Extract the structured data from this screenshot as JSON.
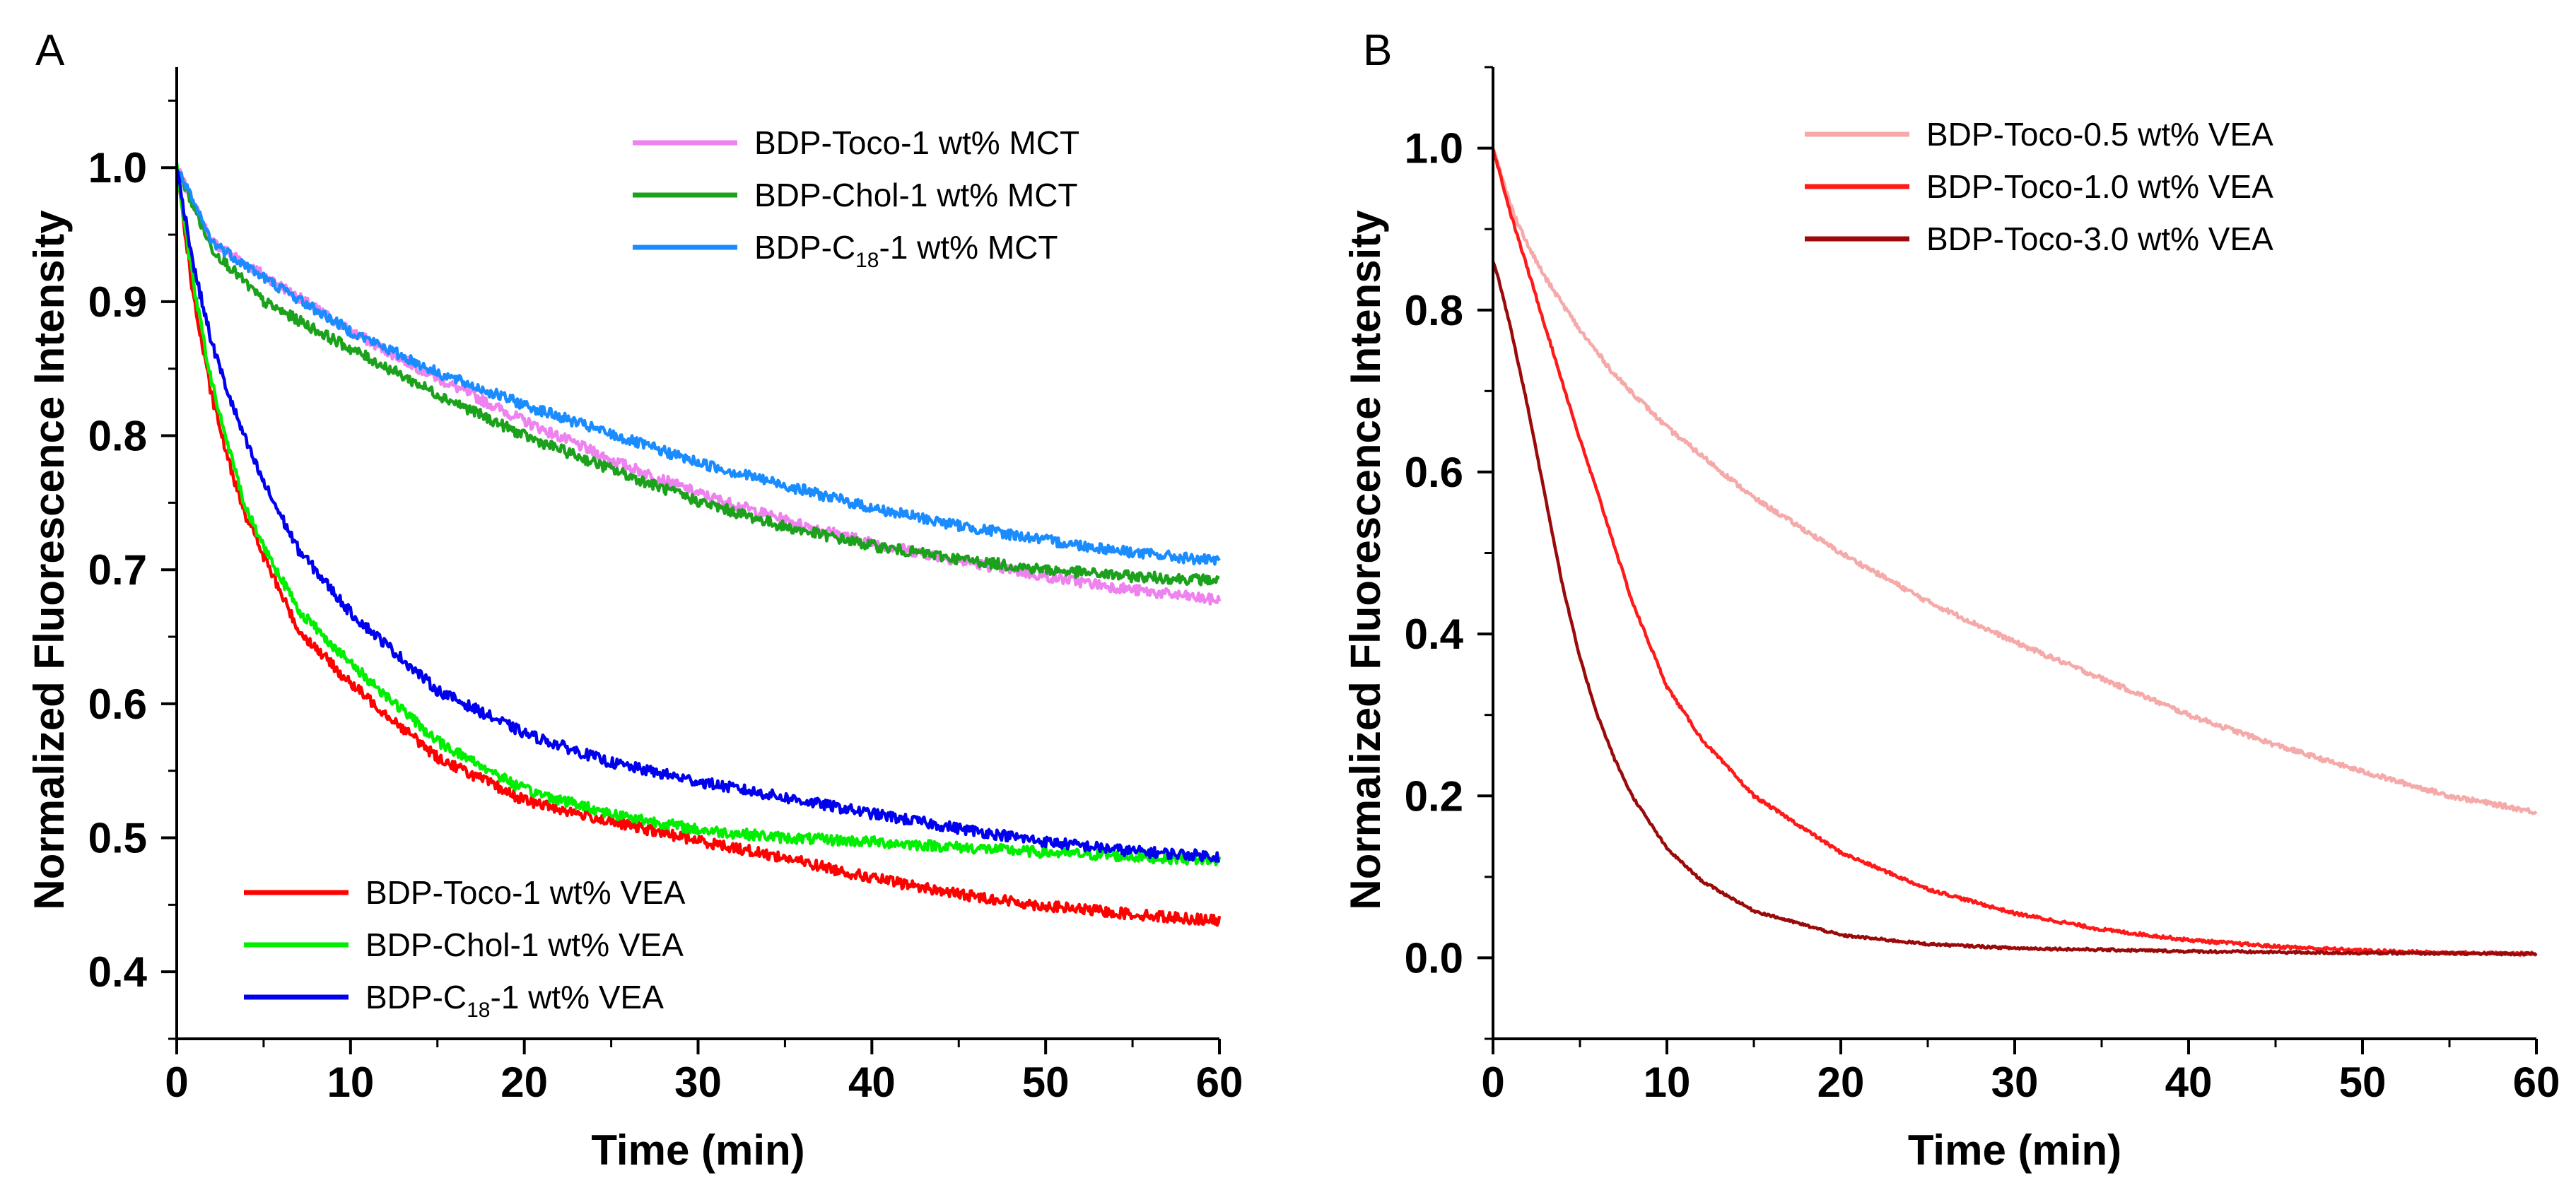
{
  "chart_data": [
    {
      "panel": "A",
      "type": "line",
      "xlabel": "Time (min)",
      "ylabel": "Normalized Fluorescence Intensity",
      "xlim": [
        0,
        60
      ],
      "ylim": [
        0.35,
        1.075
      ],
      "xticks": [
        0,
        10,
        20,
        30,
        40,
        50,
        60
      ],
      "xtick_labels": [
        "0",
        "10",
        "20",
        "30",
        "40",
        "50",
        "60"
      ],
      "yticks": [
        0.4,
        0.5,
        0.6,
        0.7,
        0.8,
        0.9,
        1.0
      ],
      "ytick_labels": [
        "0.4",
        "0.5",
        "0.6",
        "0.7",
        "0.8",
        "0.9",
        "1.0"
      ],
      "grid": false,
      "legends": [
        {
          "placement": "top-right",
          "items": [
            0,
            1,
            2
          ]
        },
        {
          "placement": "bottom-left",
          "items": [
            3,
            4,
            5
          ]
        }
      ],
      "series": [
        {
          "name": "BDP-Toco-1 wt% MCT",
          "label_main": "BDP-Toco-1 wt% MCT",
          "color": "#EE82EE",
          "x": [
            0,
            2,
            5,
            10,
            15,
            20,
            25,
            30,
            35,
            40,
            45,
            50,
            55,
            60
          ],
          "y": [
            1.0,
            0.945,
            0.92,
            0.878,
            0.843,
            0.811,
            0.782,
            0.757,
            0.737,
            0.72,
            0.707,
            0.695,
            0.685,
            0.677
          ],
          "noise": 0.004
        },
        {
          "name": "BDP-Chol-1 wt% MCT",
          "label_main": "BDP-Chol-1 wt% MCT",
          "color": "#1BA11B",
          "x": [
            0,
            2,
            5,
            10,
            15,
            20,
            25,
            30,
            35,
            40,
            45,
            50,
            55,
            60
          ],
          "y": [
            1.0,
            0.94,
            0.9,
            0.865,
            0.831,
            0.8,
            0.775,
            0.751,
            0.732,
            0.718,
            0.708,
            0.7,
            0.695,
            0.692
          ],
          "noise": 0.004
        },
        {
          "name": "BDP-C18-1 wt% MCT",
          "label_main": "BDP-C",
          "label_sub": "18",
          "label_rest": "-1 wt% MCT",
          "color": "#1A8CFF",
          "x": [
            0,
            2,
            5,
            10,
            15,
            20,
            25,
            30,
            35,
            40,
            45,
            50,
            55,
            60
          ],
          "y": [
            1.0,
            0.945,
            0.918,
            0.878,
            0.847,
            0.823,
            0.801,
            0.78,
            0.763,
            0.746,
            0.733,
            0.722,
            0.713,
            0.706
          ],
          "noise": 0.004
        },
        {
          "name": "BDP-Toco-1 wt% VEA",
          "label_main": "BDP-Toco-1 wt% VEA",
          "color": "#FF0000",
          "x": [
            0,
            1,
            2,
            3,
            4,
            5,
            7,
            10,
            15,
            20,
            25,
            30,
            35,
            40,
            45,
            50,
            55,
            60
          ],
          "y": [
            1.0,
            0.9,
            0.83,
            0.78,
            0.74,
            0.71,
            0.655,
            0.615,
            0.56,
            0.528,
            0.512,
            0.498,
            0.485,
            0.47,
            0.458,
            0.449,
            0.443,
            0.438
          ],
          "noise": 0.004
        },
        {
          "name": "BDP-Chol-1 wt% VEA",
          "label_main": "BDP-Chol-1 wt% VEA",
          "color": "#00EE00",
          "x": [
            0,
            1,
            2,
            3,
            4,
            5,
            7,
            10,
            15,
            20,
            25,
            30,
            35,
            40,
            45,
            50,
            55,
            60
          ],
          "y": [
            1.0,
            0.91,
            0.84,
            0.79,
            0.745,
            0.718,
            0.67,
            0.63,
            0.572,
            0.536,
            0.518,
            0.506,
            0.5,
            0.497,
            0.493,
            0.489,
            0.486,
            0.483
          ],
          "noise": 0.004
        },
        {
          "name": "BDP-C18-1 wt% VEA",
          "label_main": "BDP-C",
          "label_sub": "18",
          "label_rest": "-1 wt% VEA",
          "color": "#0000EE",
          "x": [
            0,
            1,
            2,
            3,
            4,
            5,
            7,
            10,
            15,
            20,
            25,
            30,
            35,
            40,
            45,
            50,
            55,
            60
          ],
          "y": [
            1.0,
            0.925,
            0.87,
            0.83,
            0.795,
            0.765,
            0.715,
            0.668,
            0.61,
            0.578,
            0.556,
            0.542,
            0.53,
            0.518,
            0.507,
            0.497,
            0.49,
            0.486
          ],
          "noise": 0.004
        }
      ]
    },
    {
      "panel": "B",
      "type": "line",
      "xlabel": "Time (min)",
      "ylabel": "Normalized Fluorescence Intensity",
      "xlim": [
        0,
        60
      ],
      "ylim": [
        -0.1,
        1.1
      ],
      "xticks": [
        0,
        10,
        20,
        30,
        40,
        50,
        60
      ],
      "xtick_labels": [
        "0",
        "10",
        "20",
        "30",
        "40",
        "50",
        "60"
      ],
      "yticks": [
        0.0,
        0.2,
        0.4,
        0.6,
        0.8,
        1.0
      ],
      "ytick_labels": [
        "0.0",
        "0.2",
        "0.4",
        "0.6",
        "0.8",
        "1.0"
      ],
      "grid": false,
      "legends": [
        {
          "placement": "top-center",
          "items": [
            0,
            1,
            2
          ]
        }
      ],
      "series": [
        {
          "name": "BDP-Toco-0.5 wt% VEA",
          "label_main": "BDP-Toco-0.5 wt% VEA",
          "color": "#F5A9A9",
          "x": [
            0,
            1,
            2,
            3,
            5,
            7,
            10,
            15,
            20,
            25,
            30,
            35,
            40,
            45,
            50,
            55,
            60
          ],
          "y": [
            1.0,
            0.93,
            0.88,
            0.84,
            0.775,
            0.72,
            0.655,
            0.568,
            0.5,
            0.44,
            0.39,
            0.345,
            0.3,
            0.263,
            0.23,
            0.2,
            0.18
          ],
          "noise": 0.003
        },
        {
          "name": "BDP-Toco-1.0 wt% VEA",
          "label_main": "BDP-Toco-1.0 wt% VEA",
          "color": "#FF1A1A",
          "x": [
            0,
            0.5,
            1,
            2,
            3,
            4,
            5,
            6,
            8,
            10,
            12,
            15,
            20,
            25,
            30,
            35,
            40,
            45,
            50,
            55,
            60
          ],
          "y": [
            1.0,
            0.96,
            0.92,
            0.85,
            0.78,
            0.71,
            0.64,
            0.575,
            0.44,
            0.335,
            0.27,
            0.2,
            0.13,
            0.085,
            0.055,
            0.035,
            0.022,
            0.014,
            0.009,
            0.006,
            0.005
          ],
          "noise": 0.002
        },
        {
          "name": "BDP-Toco-3.0 wt% VEA",
          "label_main": "BDP-Toco-3.0 wt% VEA",
          "color": "#9B0A0A",
          "x": [
            0,
            0.3,
            1,
            2,
            3,
            4,
            5,
            6,
            7,
            8,
            10,
            12,
            15,
            20,
            25,
            30,
            40,
            50,
            60
          ],
          "y": [
            0.86,
            0.84,
            0.78,
            0.68,
            0.57,
            0.46,
            0.37,
            0.3,
            0.245,
            0.2,
            0.135,
            0.095,
            0.058,
            0.028,
            0.017,
            0.012,
            0.008,
            0.006,
            0.005
          ],
          "noise": 0.0015
        }
      ]
    }
  ]
}
